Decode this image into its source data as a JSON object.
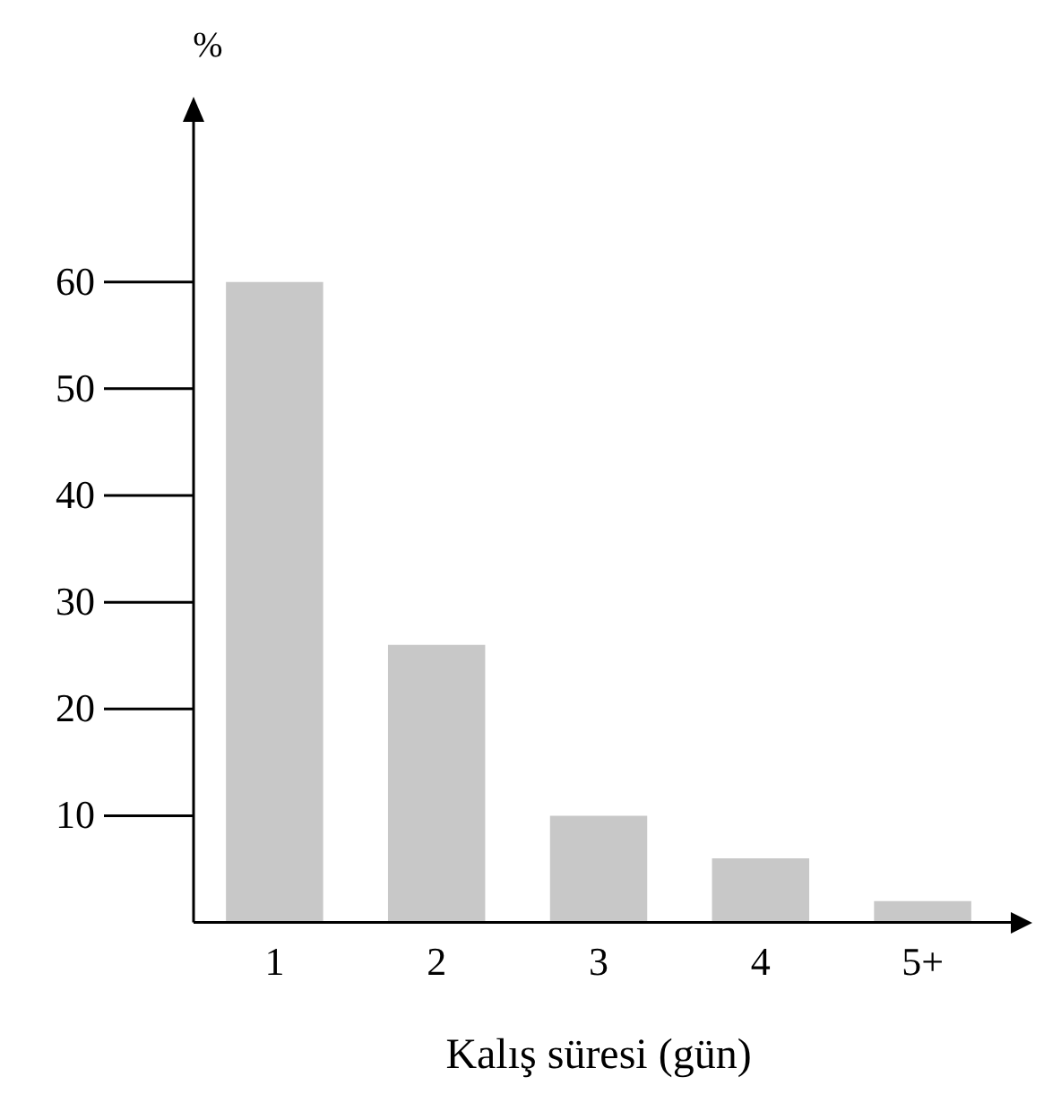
{
  "chart_data": {
    "type": "bar",
    "xlabel": "Kalış süresi (gün)",
    "ylabel": "%",
    "categories": [
      "1",
      "2",
      "3",
      "4",
      "5+"
    ],
    "values": [
      60,
      26,
      10,
      6,
      2
    ],
    "color": "#c8c8c8",
    "ylim": [
      0,
      75
    ],
    "yticks": [
      10,
      20,
      30,
      40,
      50,
      60
    ],
    "grid": false
  }
}
